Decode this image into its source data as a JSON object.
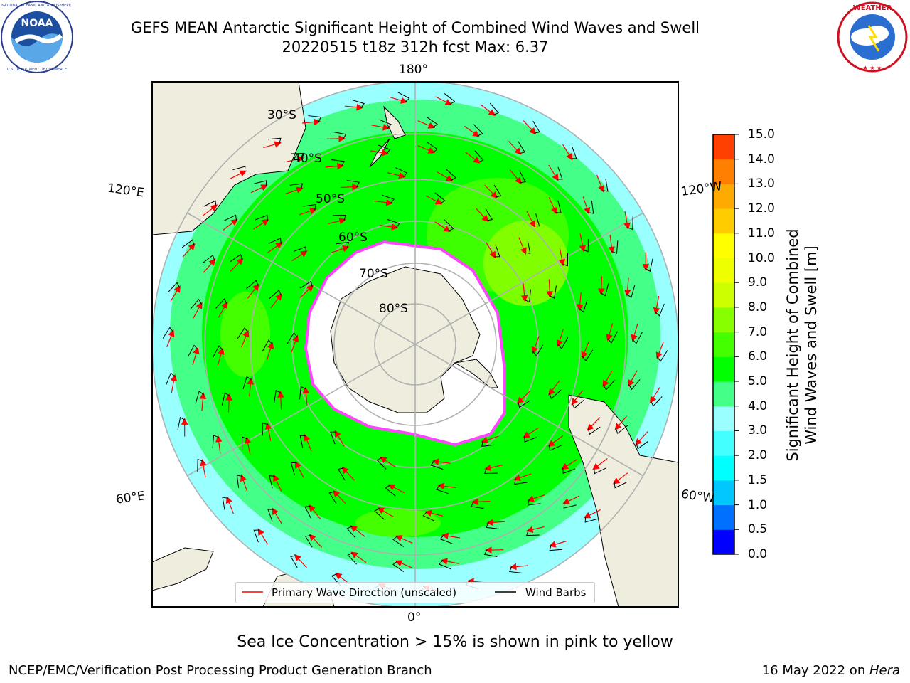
{
  "header": {
    "title_line1": "GEFS MEAN Antarctic Significant Height of Combined Wind Waves and Swell",
    "title_line2": "20220515 t18z 312h fcst   Max: 6.37"
  },
  "logos": {
    "left": {
      "name": "NOAA",
      "ring_text": "NATIONAL OCEANIC AND ATMOSPHERIC ADMINISTRATION · U.S. DEPARTMENT OF COMMERCE"
    },
    "right": {
      "name": "NATIONAL WEATHER SERVICE"
    }
  },
  "map": {
    "longitude_labels": {
      "top": "180°",
      "left_upper": "120°E",
      "right_upper": "120°W",
      "left_lower": "60°E",
      "right_lower": "60°W",
      "bottom": "0°"
    },
    "latitude_labels": [
      "30°S",
      "40°S",
      "50°S",
      "60°S",
      "70°S",
      "80°S"
    ],
    "legend": {
      "wave_label": "Primary Wave Direction (unscaled)",
      "barb_label": "Wind Barbs"
    },
    "colors": {
      "ocean_border": "#000000",
      "land": "#efedde",
      "ice": "#ffffff",
      "arrow": "#ff0000",
      "barb": "#000000",
      "grid": "#b0b0b0"
    }
  },
  "colorbar": {
    "title_line1": "Significant Height of Combined",
    "title_line2": "Wind Waves and Swell [m]",
    "ticks": [
      "0.0",
      "0.5",
      "1.0",
      "1.5",
      "2.0",
      "3.0",
      "4.0",
      "5.0",
      "6.0",
      "7.0",
      "8.0",
      "9.0",
      "10.0",
      "11.0",
      "12.0",
      "13.0",
      "14.0",
      "15.0"
    ],
    "colors": [
      "#0000ff",
      "#0070ff",
      "#00c8ff",
      "#00ffff",
      "#44ffff",
      "#99ffff",
      "#44ff88",
      "#00ff00",
      "#44ff00",
      "#88ff00",
      "#ccff00",
      "#eeff00",
      "#ffff00",
      "#ffcc00",
      "#ffaa00",
      "#ff8000",
      "#ff4000",
      "#ff0000"
    ]
  },
  "sea_ice_note": "Sea Ice Concentration > 15% is shown in pink to yellow",
  "footer": {
    "left": "NCEP/EMC/Verification Post Processing Product Generation Branch",
    "right_text": "16 May 2022 on ",
    "right_italic": "Hera"
  }
}
